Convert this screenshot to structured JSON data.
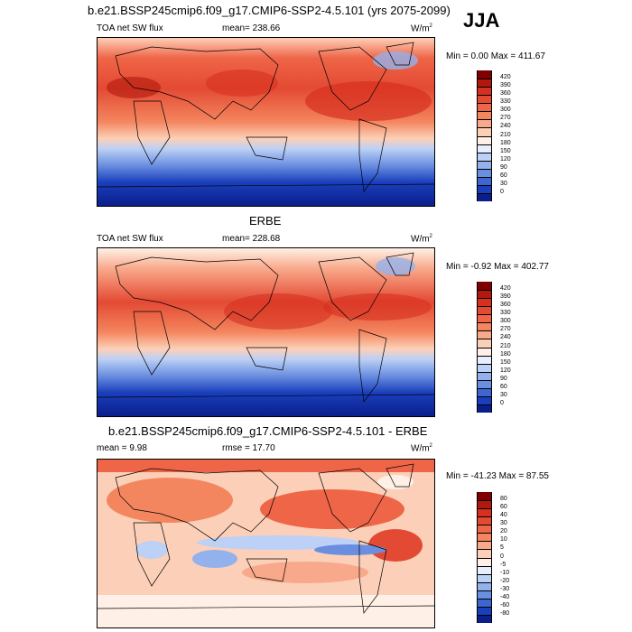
{
  "header": {
    "main_title": "b.e21.BSSP245cmip6.f09_g17.CMIP6-SSP2-4.5.101 (yrs 2075-2099)",
    "season": "JJA"
  },
  "panels": [
    {
      "id": "model",
      "variable": "TOA net SW flux",
      "mean_text": "mean= 238.66",
      "units": "W/m",
      "units_sup": "2",
      "range_text": "Min =  0.00 Max = 411.67",
      "levels": [
        "420",
        "390",
        "360",
        "330",
        "300",
        "270",
        "240",
        "210",
        "180",
        "150",
        "120",
        "90",
        "60",
        "30",
        "0"
      ],
      "colors": [
        "#7f0000",
        "#b2180b",
        "#d7301f",
        "#e34a33",
        "#ef6548",
        "#f4865f",
        "#f9a98b",
        "#fcd0b8",
        "#fef0e6",
        "#e6eeff",
        "#bdd0f5",
        "#93b1ec",
        "#6a8fe0",
        "#3d66d0",
        "#1a3fbc",
        "#0a1f8c"
      ]
    },
    {
      "id": "obs",
      "subtitle": "ERBE",
      "variable": "TOA net SW flux",
      "mean_text": "mean= 228.68",
      "units": "W/m",
      "units_sup": "2",
      "range_text": "Min = -0.92 Max = 402.77",
      "levels": [
        "420",
        "390",
        "360",
        "330",
        "300",
        "270",
        "240",
        "210",
        "180",
        "150",
        "120",
        "90",
        "60",
        "30",
        "0"
      ],
      "colors": [
        "#7f0000",
        "#b2180b",
        "#d7301f",
        "#e34a33",
        "#ef6548",
        "#f4865f",
        "#f9a98b",
        "#fcd0b8",
        "#fef0e6",
        "#e6eeff",
        "#bdd0f5",
        "#93b1ec",
        "#6a8fe0",
        "#3d66d0",
        "#1a3fbc",
        "#0a1f8c"
      ]
    },
    {
      "id": "diff",
      "subtitle": "b.e21.BSSP245cmip6.f09_g17.CMIP6-SSP2-4.5.101 - ERBE",
      "mean_text": "mean =   9.98",
      "rmse_text": "rmse =  17.70",
      "units": "W/m",
      "units_sup": "2",
      "range_text": "Min = -41.23 Max =  87.55",
      "levels": [
        "80",
        "60",
        "40",
        "30",
        "20",
        "10",
        "5",
        "0",
        "-5",
        "-10",
        "-20",
        "-30",
        "-40",
        "-60",
        "-80"
      ],
      "colors": [
        "#7f0000",
        "#b2180b",
        "#d7301f",
        "#e34a33",
        "#ef6548",
        "#f4865f",
        "#f9a98b",
        "#fcd0b8",
        "#fef0e6",
        "#e6eeff",
        "#bdd0f5",
        "#93b1ec",
        "#6a8fe0",
        "#3d66d0",
        "#1a3fbc",
        "#0a1f8c"
      ]
    }
  ]
}
